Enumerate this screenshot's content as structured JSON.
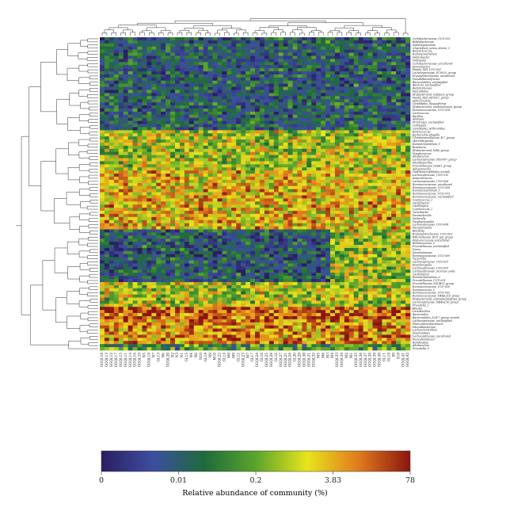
{
  "chart_data": {
    "type": "heatmap",
    "title": "",
    "xlabel": "",
    "ylabel": "",
    "rows": [
      "Coriobacteriaceae_UCG-002",
      "Bifidobacterium",
      "Subdoligranulum",
      "Clostridium_sensu_stricto_1",
      "Butyricicoccus",
      "Ruminiclostridium",
      "Helicobacter",
      "Veillonella",
      "Coriobacteriaceae_uncultured",
      "Enterobacter",
      "Family_XIII_UCG-001",
      "Lachnospiraceae_FCS020_group",
      "Erysipelotrichaceae_uncultured",
      "Pseudoflavonifractor",
      "Bacteroidales_unclassified",
      "Bacteria_unclassified",
      "Butyricimonas",
      "Faecalitalea",
      "[Eubacterium]_nodatum_group",
      "Family_XIII_AD3011_group",
      "Adlercreutzia",
      "Candidatus_Stoquefichus",
      "[Eubacterium]_oxidoreducens_group",
      "Ruminococcaceae_UCG-014",
      "Lactococcus",
      "Bacillus",
      "Alistipes",
      "Firmicutes_unclassified",
      "Collinsella",
      "Candidatus_Arthromitus",
      "Enterococcus",
      "Escherichia-Shigella",
      "Christensenellaceae_R-7_group",
      "Marvinbryantia",
      "Ruminiclostridium_9",
      "Roseburia",
      "[Eubacterium]_hallii_group",
      "Streptococcus",
      "Allobaculum",
      "Lachnospiraceae_ND3007_group",
      "Shuttleworthia",
      "Prevotellaceae_Ga6A1_group",
      "Aldigaviscella",
      "Gastranaerophilales_norank",
      "Lachnospiraceae_UCG-010",
      "Anaerotruncus",
      "Lachnospiraceae_UCG-006",
      "Ruminococcaceae_uncultured",
      "Ruminococcaceae_UCG-008",
      "Ruminiclostridium_5",
      "Ruminococcaceae_UCG-013",
      "Ruminococcaceae_unclassified",
      "Coprococcus_1",
      "Oscillibacter",
      "Oscillospira",
      "Coprococcus_2",
      "Turicibacter",
      "Parasutterella",
      "Sutterella",
      "Parabacteroides",
      "Lachnospiraceae_UCG-004",
      "Paraprevotella",
      "Bilophila",
      "Erysipelotrichaceae_UCG-003",
      "Rikenellaceae_RC9_gut_group",
      "Peptococcaceae_uncultured",
      "Ruminococcus_2",
      "Prevotellaceae_unclassified",
      "Dorea",
      "Intestinimonas",
      "Ruminococcaceae_UCG-009",
      "Tyzzerella",
      "Lachnospiraceae_UCG-001",
      "Eisenbergiella",
      "Lachnospiraceae_UCG-005",
      "Lachnospiraceae_incertae_sedis",
      "Oscillibacter",
      "Ruminiclostridium_6",
      "Prevotellaceae_UCG-001",
      "Prevotellaceae_NK3B31_group",
      "Ruminococcaceae_UCG-010",
      "Ruminococcus_1",
      "Ruminococcaceae_UCG-005",
      "Ruminococcaceae_NK4A214_group",
      "[Eubacterium]_coprostanoligenes_group",
      "Lachnospiraceae_NK4A136_group",
      "Prevotella_1",
      "Blautia",
      "Lactobacillus",
      "Bacteroides",
      "Bacteroidales_S24-7_group_norank",
      "Lachnospiraceae_unclassified",
      "Phascolarctobacterium",
      "Faecalibacterium",
      "Lachnoclostridium",
      "Anaerostipes",
      "Lachnospiraceae_uncultured",
      "Fusicatenibacter",
      "Romboutsia",
      "Allobaculum",
      "Prevotella_9"
    ],
    "columns": [
      "GGQL10",
      "GGQL13",
      "GGQL12",
      "GGQL17",
      "GGQL15",
      "GGQL11",
      "GGQL14",
      "GGQL16",
      "GGQL19",
      "N5",
      "GGQL18",
      "N7",
      "GL13",
      "N6",
      "GGQL20",
      "N2",
      "N3",
      "N1",
      "GL15",
      "N4",
      "N8",
      "N10",
      "GL19",
      "N9",
      "M10",
      "GGQL22",
      "GL14",
      "M8",
      "M9",
      "GL12",
      "GGQL23",
      "M7",
      "GL17",
      "GGQL24",
      "GL16",
      "GGQL25",
      "GGQL28",
      "GL18",
      "GGQL27",
      "GGQL21",
      "GGQL26",
      "GL20",
      "GGQL29",
      "GGQL30",
      "GGQL31",
      "GGQL32",
      "M5",
      "M6",
      "M3",
      "M4",
      "GGQL33",
      "GGQL34",
      "M2",
      "M1",
      "GGQL35",
      "GGQL36",
      "GGQL37",
      "GGQL38",
      "GGQL39",
      "GGQL40",
      "GL11",
      "GL10",
      "S9",
      "S10",
      "GGQL41",
      "GGQL42"
    ],
    "colorbar": {
      "ticks": [
        "0",
        "0.01",
        "0.2",
        "3.83",
        "78"
      ],
      "label": "Relative abundance of community (%)",
      "colors": [
        "#2a1e62",
        "#3d4ea0",
        "#1e6b3a",
        "#5aa52c",
        "#e8e41c",
        "#e07a1c",
        "#8a1510"
      ]
    },
    "row_groups": [
      {
        "from": 0,
        "to": 29,
        "base": 0.25
      },
      {
        "from": 30,
        "to": 42,
        "base": 0.6
      },
      {
        "from": 43,
        "to": 61,
        "base": 0.72
      },
      {
        "from": 62,
        "to": 78,
        "base": 0.22
      },
      {
        "from": 79,
        "to": 86,
        "base": 0.6
      },
      {
        "from": 87,
        "to": 98,
        "base": 0.8
      }
    ],
    "grid": false,
    "legend_position": "bottom"
  }
}
